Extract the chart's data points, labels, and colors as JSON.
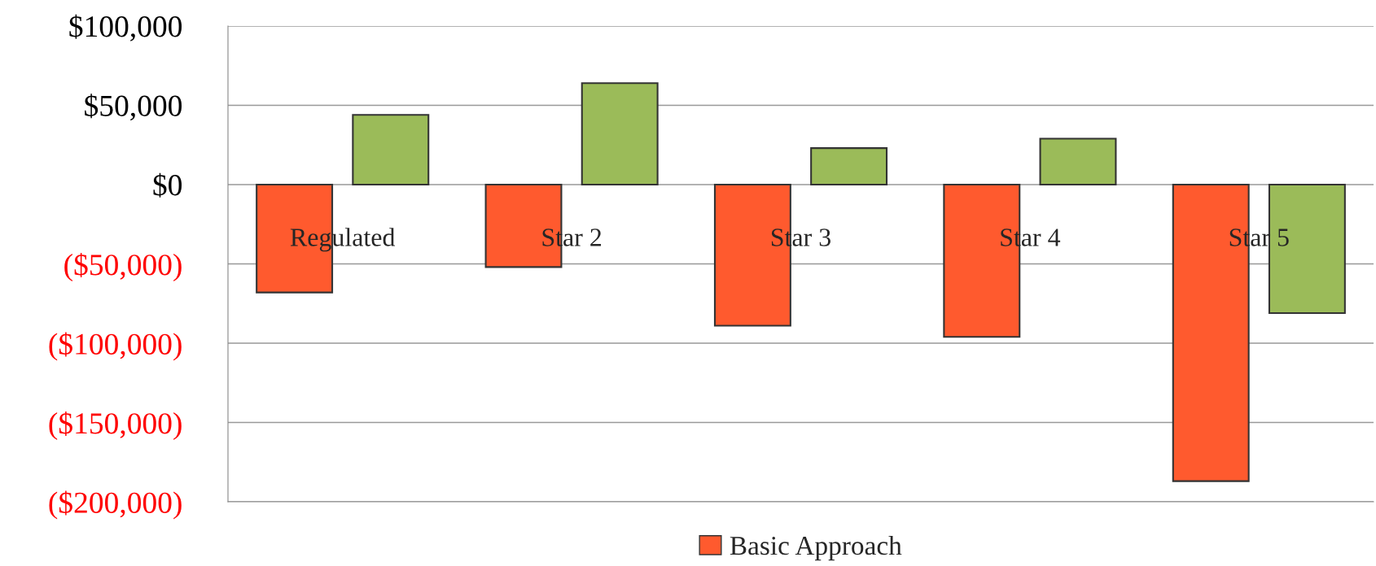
{
  "chart_data": {
    "type": "bar",
    "categories": [
      "Regulated",
      "Star 2",
      "Star 3",
      "Star 4",
      "Star 5"
    ],
    "series": [
      {
        "name": "Basic Approach",
        "color": "#ff5a2e",
        "values": [
          -68000,
          -52000,
          -89000,
          -96000,
          -187000
        ]
      },
      {
        "color": "#9bbb59",
        "values": [
          44000,
          64000,
          23000,
          29000,
          -81000
        ]
      }
    ],
    "ylim": [
      -200000,
      100000
    ],
    "yticks": [
      {
        "value": -200000,
        "label": "($200,000)"
      },
      {
        "value": -150000,
        "label": "($150,000)"
      },
      {
        "value": -100000,
        "label": "($100,000)"
      },
      {
        "value": -50000,
        "label": "($50,000)"
      },
      {
        "value": 0,
        "label": "$0"
      },
      {
        "value": 50000,
        "label": "$50,000"
      },
      {
        "value": 100000,
        "label": "$100,000"
      }
    ],
    "grid": "y",
    "legend": "bottom"
  }
}
